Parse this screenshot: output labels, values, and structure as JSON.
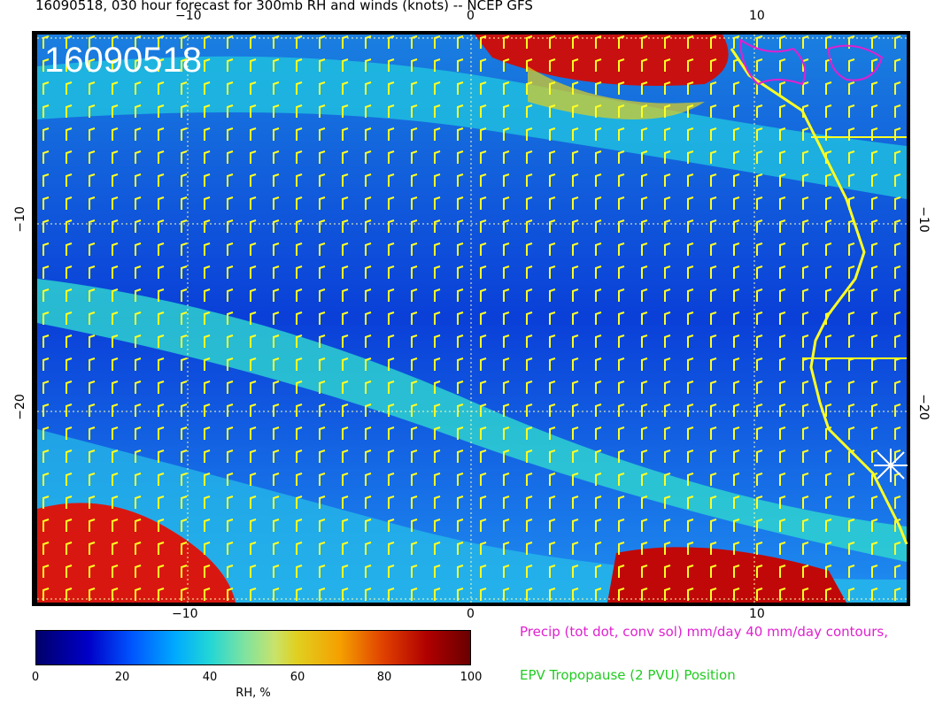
{
  "title": "16090518, 030 hour forecast for 300mb RH and winds (knots) -- NCEP GFS",
  "stamp": "16090518",
  "axes": {
    "x_ticks": [
      "−10",
      "0",
      "10"
    ],
    "y_ticks": [
      "−10",
      "−20"
    ]
  },
  "colorbar": {
    "label": "RH, %",
    "ticks": [
      "0",
      "20",
      "40",
      "60",
      "80",
      "100"
    ],
    "range": [
      0,
      100
    ]
  },
  "legend": {
    "precip": "Precip (tot dot, conv sol) mm/day 40 mm/day contours,",
    "epv": "EPV Tropopause (2 PVU) Position",
    "precip_color": "#e020d0",
    "epv_color": "#22cc22"
  },
  "colors": {
    "wind_barbs": "#ffff22",
    "coastline": "#ffff22",
    "grid": "#ffffff"
  }
}
